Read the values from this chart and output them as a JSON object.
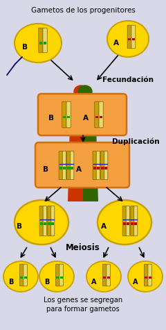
{
  "title_top": "Gametos de los progenitores",
  "title_bottom": "Los genes se segregan\npara formar gametos",
  "label_fecundacion": "Fecundación",
  "label_duplicacion": "Duplicación",
  "label_meiosis": "Meiosis",
  "yellow_color": "#FFD700",
  "yellow_outline": "#C8A000",
  "orange_box_color": "#F5A040",
  "orange_box_edge": "#D07010",
  "chrom_gold": "#C8A000",
  "chrom_light": "#E8D870",
  "chrom_green_band": "#00AA00",
  "chrom_red_band": "#CC0000",
  "chrom_centromere": "#2222AA",
  "figure_bg": "#d8d8e8",
  "body_red": "#CC3300",
  "body_green": "#336600",
  "sperm_color": "#000066"
}
